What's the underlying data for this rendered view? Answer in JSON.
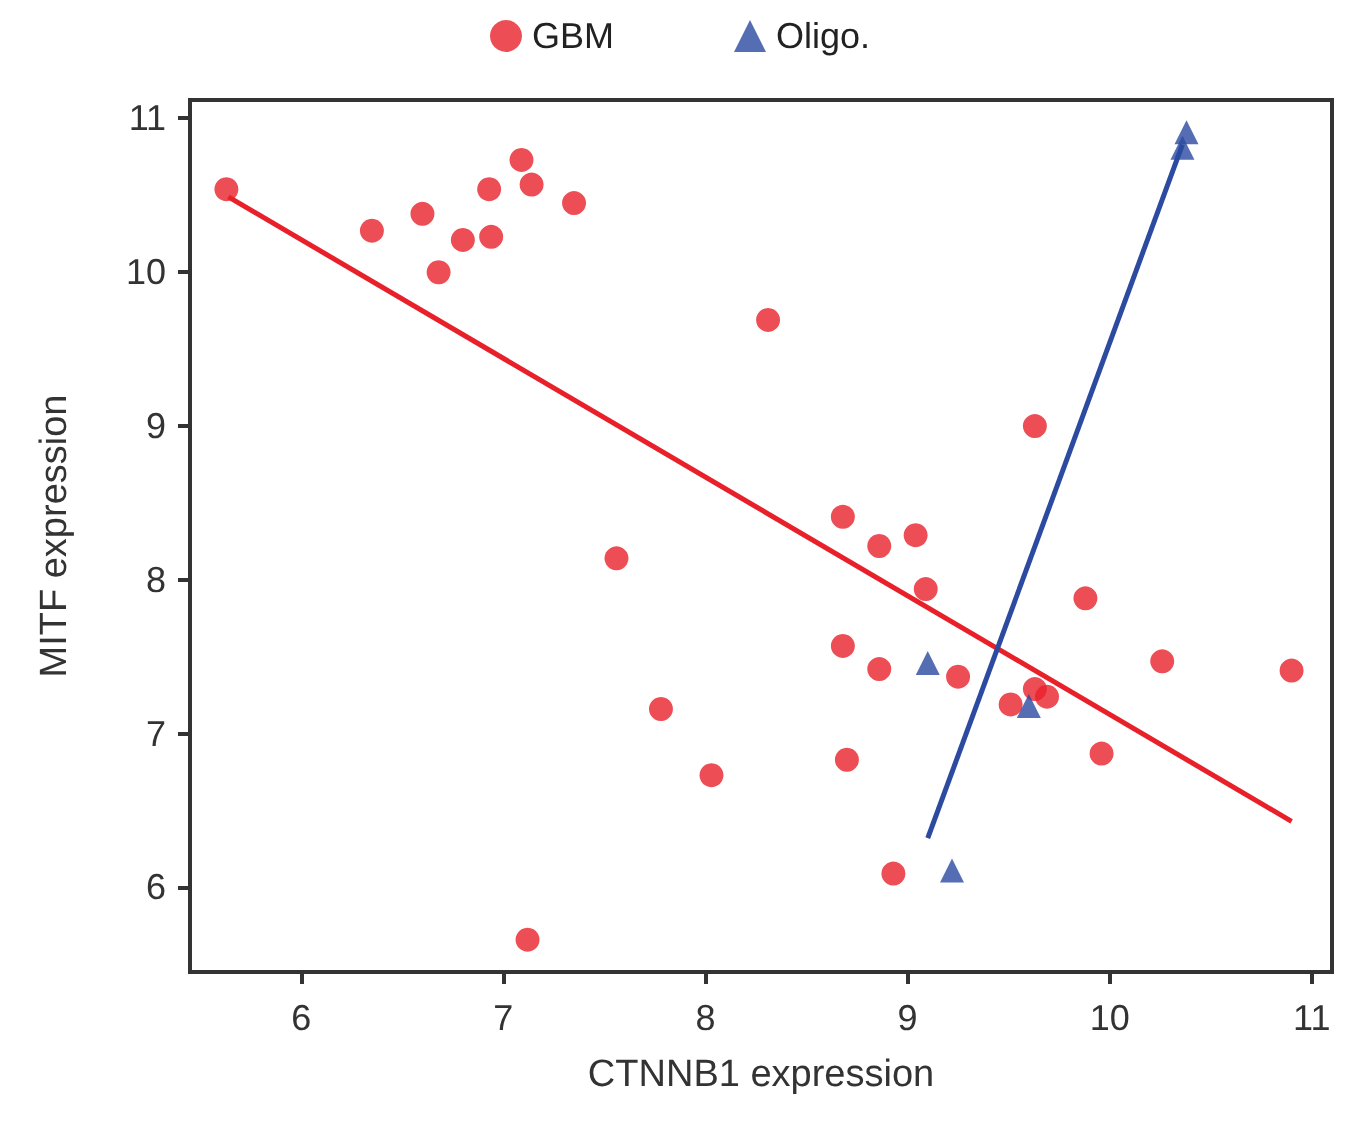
{
  "chart_data": {
    "type": "scatter",
    "xlabel": "CTNNB1 expression",
    "ylabel": "MITF expression",
    "xlim": [
      5.45,
      11.1
    ],
    "xticks": [
      6,
      7,
      8,
      9,
      10,
      11
    ],
    "ylim": [
      5.45,
      11.12
    ],
    "yticks": [
      6,
      7,
      8,
      9,
      10,
      11
    ],
    "grid": false,
    "legend": "top",
    "series": [
      {
        "name": "GBM",
        "color": "#e8202a",
        "marker": "circle",
        "x": [
          5.63,
          6.35,
          6.6,
          6.68,
          6.8,
          6.93,
          6.94,
          7.09,
          7.14,
          7.35,
          8.31,
          9.63,
          8.68,
          7.56,
          8.86,
          9.04,
          9.09,
          9.88,
          8.68,
          8.86,
          9.25,
          10.26,
          10.9,
          7.78,
          9.51,
          9.63,
          9.69,
          9.96,
          8.03,
          8.7,
          8.93,
          7.12
        ],
        "values": [
          10.54,
          10.27,
          10.38,
          10.0,
          10.21,
          10.54,
          10.23,
          10.73,
          10.57,
          10.45,
          9.69,
          9.0,
          8.41,
          8.14,
          8.22,
          8.29,
          7.94,
          7.88,
          7.57,
          7.42,
          7.37,
          7.47,
          7.41,
          7.16,
          7.19,
          7.29,
          7.24,
          6.87,
          6.73,
          6.83,
          6.09,
          5.66
        ]
      },
      {
        "name": "Oligo.",
        "color": "#2b4aa0",
        "marker": "triangle",
        "x": [
          9.1,
          9.6,
          9.22,
          10.38,
          10.36
        ],
        "values": [
          7.46,
          7.18,
          6.11,
          10.91,
          10.81
        ]
      },
      {
        "type": "line",
        "color": "#e8202a",
        "marker": "none",
        "x": [
          5.64,
          10.9
        ],
        "values": [
          10.49,
          6.43
        ]
      },
      {
        "type": "line",
        "color": "#2b4aa0",
        "marker": "none",
        "x": [
          9.1,
          10.36
        ],
        "values": [
          6.32,
          10.83
        ]
      }
    ]
  }
}
